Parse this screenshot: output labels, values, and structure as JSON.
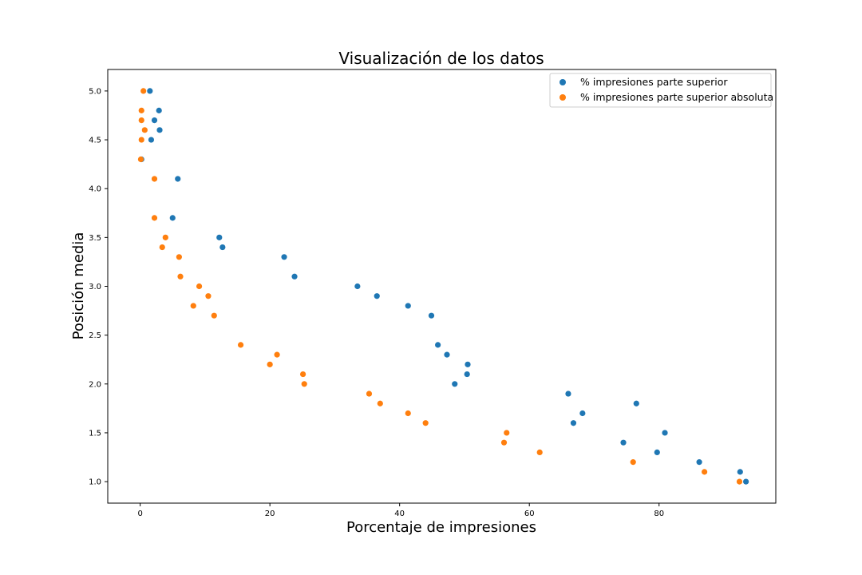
{
  "chart_data": {
    "type": "scatter",
    "title": "Visualización de los datos",
    "xlabel": "Porcentaje de impresiones",
    "ylabel": "Posición media",
    "xlim": [
      -5,
      98
    ],
    "ylim": [
      0.78,
      5.22
    ],
    "xticks": [
      0,
      20,
      40,
      60,
      80
    ],
    "yticks": [
      1.0,
      1.5,
      2.0,
      2.5,
      3.0,
      3.5,
      4.0,
      4.5,
      5.0
    ],
    "grid": false,
    "legend_position": "top-right",
    "series": [
      {
        "name": "% impresiones parte superior",
        "color": "#1f77b4",
        "points": [
          [
            1.5,
            5.0
          ],
          [
            2.9,
            4.8
          ],
          [
            2.2,
            4.7
          ],
          [
            3.0,
            4.6
          ],
          [
            1.7,
            4.5
          ],
          [
            0.2,
            4.3
          ],
          [
            5.8,
            4.1
          ],
          [
            5.0,
            3.7
          ],
          [
            12.2,
            3.5
          ],
          [
            12.7,
            3.4
          ],
          [
            22.2,
            3.3
          ],
          [
            23.8,
            3.1
          ],
          [
            33.5,
            3.0
          ],
          [
            36.5,
            2.9
          ],
          [
            41.3,
            2.8
          ],
          [
            44.9,
            2.7
          ],
          [
            45.9,
            2.4
          ],
          [
            47.3,
            2.3
          ],
          [
            50.5,
            2.2
          ],
          [
            50.4,
            2.1
          ],
          [
            48.5,
            2.0
          ],
          [
            66.0,
            1.9
          ],
          [
            76.5,
            1.8
          ],
          [
            68.2,
            1.7
          ],
          [
            66.8,
            1.6
          ],
          [
            80.9,
            1.5
          ],
          [
            74.5,
            1.4
          ],
          [
            79.7,
            1.3
          ],
          [
            86.2,
            1.2
          ],
          [
            92.5,
            1.1
          ],
          [
            93.4,
            1.0
          ]
        ]
      },
      {
        "name": "% impresiones parte superior absoluta",
        "color": "#ff7f0e",
        "points": [
          [
            0.5,
            5.0
          ],
          [
            0.2,
            4.8
          ],
          [
            0.2,
            4.7
          ],
          [
            0.7,
            4.6
          ],
          [
            0.2,
            4.5
          ],
          [
            0.1,
            4.3
          ],
          [
            2.2,
            4.1
          ],
          [
            2.2,
            3.7
          ],
          [
            3.9,
            3.5
          ],
          [
            3.4,
            3.4
          ],
          [
            6.0,
            3.3
          ],
          [
            6.2,
            3.1
          ],
          [
            9.1,
            3.0
          ],
          [
            10.5,
            2.9
          ],
          [
            8.2,
            2.8
          ],
          [
            11.4,
            2.7
          ],
          [
            15.5,
            2.4
          ],
          [
            21.1,
            2.3
          ],
          [
            20.0,
            2.2
          ],
          [
            25.1,
            2.1
          ],
          [
            25.3,
            2.0
          ],
          [
            35.3,
            1.9
          ],
          [
            37.0,
            1.8
          ],
          [
            41.3,
            1.7
          ],
          [
            44.0,
            1.6
          ],
          [
            56.5,
            1.5
          ],
          [
            56.1,
            1.4
          ],
          [
            61.6,
            1.3
          ],
          [
            76.0,
            1.2
          ],
          [
            87.0,
            1.1
          ],
          [
            92.4,
            1.0
          ]
        ]
      }
    ]
  }
}
